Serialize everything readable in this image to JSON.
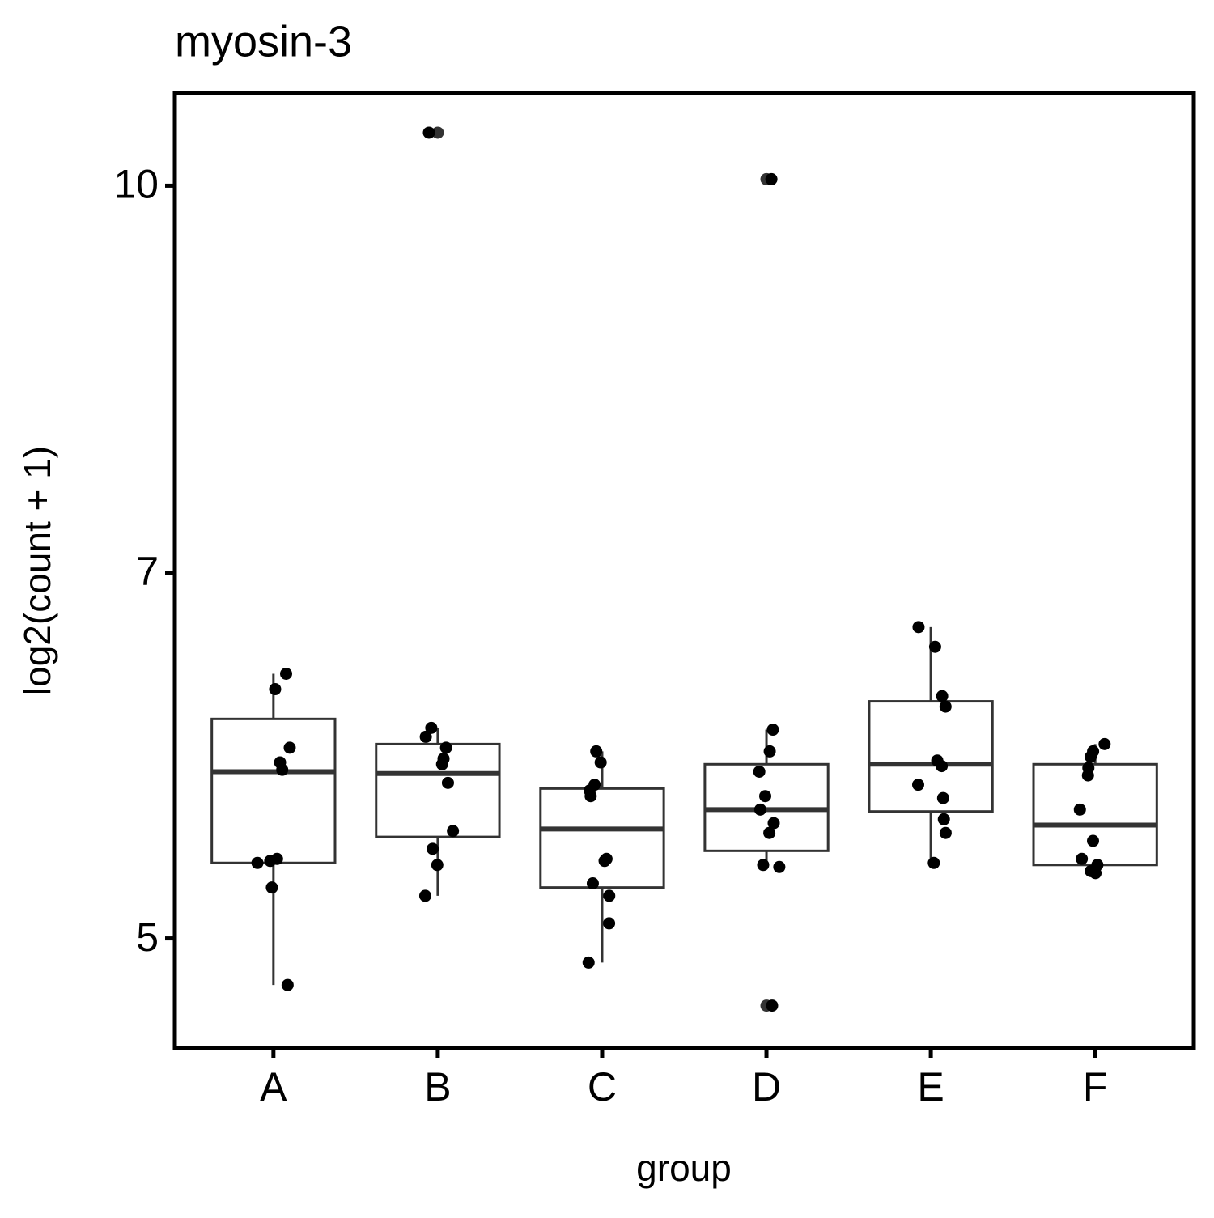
{
  "chart_data": {
    "type": "box",
    "title": "myosin-3",
    "x_label": "group",
    "y_label": "log2(count + 1)",
    "log_scale": true,
    "ylim": [
      4.52,
      10.89
    ],
    "yticks": [
      5,
      7,
      10
    ],
    "color": "#333333",
    "point_color": "#000000",
    "categories": [
      "A",
      "B",
      "C",
      "D",
      "E",
      "F"
    ],
    "boxes": [
      {
        "min": 4.79,
        "q1": 5.36,
        "median": 5.83,
        "q3": 6.12,
        "max": 6.38,
        "outliers": [],
        "points": [
          6.38,
          6.29,
          5.96,
          5.88,
          5.84,
          5.38,
          5.37,
          5.36,
          5.24,
          4.79
        ]
      },
      {
        "min": 5.2,
        "q1": 5.49,
        "median": 5.82,
        "q3": 5.98,
        "max": 6.07,
        "outliers": [
          10.5
        ],
        "points": [
          10.5,
          6.07,
          6.02,
          5.96,
          5.9,
          5.87,
          5.77,
          5.52,
          5.43,
          5.35,
          5.2
        ]
      },
      {
        "min": 4.89,
        "q1": 5.24,
        "median": 5.53,
        "q3": 5.74,
        "max": 5.94,
        "outliers": [],
        "points": [
          5.94,
          5.88,
          5.76,
          5.73,
          5.7,
          5.38,
          5.37,
          5.26,
          5.2,
          5.07,
          4.89
        ]
      },
      {
        "min": 5.34,
        "q1": 5.42,
        "median": 5.63,
        "q3": 5.87,
        "max": 6.06,
        "outliers": [
          10.06,
          4.7
        ],
        "points": [
          10.06,
          6.06,
          5.94,
          5.83,
          5.7,
          5.63,
          5.56,
          5.51,
          5.35,
          5.34,
          4.7
        ]
      },
      {
        "min": 5.36,
        "q1": 5.62,
        "median": 5.87,
        "q3": 6.22,
        "max": 6.66,
        "outliers": [],
        "points": [
          6.66,
          6.54,
          6.25,
          6.19,
          5.89,
          5.86,
          5.76,
          5.69,
          5.58,
          5.51,
          5.36
        ]
      },
      {
        "min": 5.31,
        "q1": 5.35,
        "median": 5.55,
        "q3": 5.87,
        "max": 5.98,
        "outliers": [],
        "points": [
          5.98,
          5.94,
          5.91,
          5.85,
          5.81,
          5.63,
          5.47,
          5.38,
          5.35,
          5.32,
          5.31
        ]
      }
    ]
  }
}
